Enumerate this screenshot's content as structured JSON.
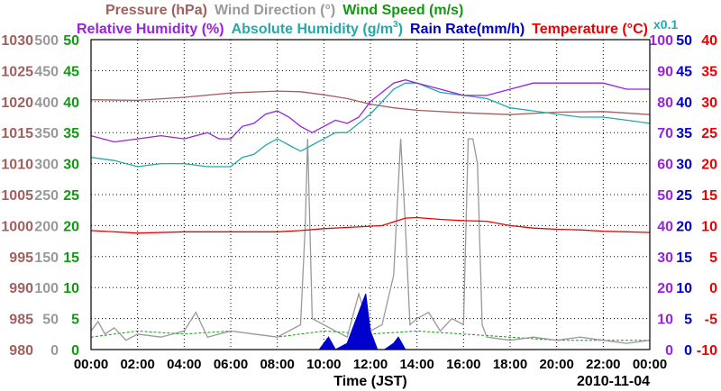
{
  "chart_data": {
    "type": "line",
    "date": "2010-11-04",
    "xlabel": "Time (JST)",
    "x_ticks": [
      "00:00",
      "02:00",
      "04:00",
      "06:00",
      "08:00",
      "10:00",
      "12:00",
      "14:00",
      "16:00",
      "18:00",
      "20:00",
      "22:00",
      "00:00"
    ],
    "x_range_hours": [
      0,
      24
    ],
    "header_row1": [
      {
        "text": "Pressure (hPa)",
        "color": "#a0605e"
      },
      {
        "text": "Wind Direction (°)",
        "color": "#999999"
      },
      {
        "text": "Wind Speed (m/s)",
        "color": "#119911"
      }
    ],
    "header_row2": [
      {
        "text": "Relative Humidity (%)",
        "color": "#9922dd"
      },
      {
        "text": "Absolute Humidity (g/m",
        "sup": "3",
        "tail": ")",
        "color": "#22aaaa"
      },
      {
        "text": "Rain Rate(mm/h)",
        "color": "#0000cc"
      },
      {
        "text": "Temperature (°C)",
        "color": "#ee0000"
      },
      {
        "text": "x0.1",
        "color": "#22aaaa"
      }
    ],
    "axes": {
      "pressure": {
        "color": "#a0605e",
        "ylim": [
          980,
          1030
        ],
        "ticks": [
          "1030",
          "1025",
          "1020",
          "1015",
          "1010",
          "1005",
          "1000",
          "995",
          "990",
          "985",
          "980"
        ]
      },
      "wind_direction": {
        "color": "#999999",
        "ylim": [
          0,
          500
        ],
        "ticks": [
          "500",
          "450",
          "400",
          "350",
          "300",
          "250",
          "200",
          "150",
          "100",
          "50",
          "0"
        ]
      },
      "wind_speed": {
        "color": "#119911",
        "ylim": [
          0,
          50
        ],
        "ticks": [
          "50",
          "45",
          "40",
          "35",
          "30",
          "25",
          "20",
          "15",
          "10",
          "5",
          "0"
        ]
      },
      "humidity": {
        "color": "#9922dd",
        "ylim": [
          0,
          100
        ],
        "ticks": [
          "100",
          "90",
          "80",
          "70",
          "60",
          "50",
          "40",
          "30",
          "20",
          "10",
          "0"
        ]
      },
      "rain_rate": {
        "color": "#0000cc",
        "ylim": [
          0,
          50
        ],
        "ticks": [
          "50",
          "45",
          "40",
          "35",
          "30",
          "25",
          "20",
          "15",
          "10",
          "5",
          "0"
        ]
      },
      "temperature": {
        "color": "#ee0000",
        "ylim": [
          -10,
          40
        ],
        "ticks": [
          "40",
          "35",
          "30",
          "25",
          "20",
          "15",
          "10",
          "5",
          "0",
          "-5",
          "-10"
        ]
      }
    },
    "series": [
      {
        "name": "Pressure",
        "axis": "pressure",
        "color": "#a0605e",
        "x": [
          0,
          2,
          4,
          6,
          8,
          9,
          10,
          11,
          12,
          13,
          14,
          16,
          18,
          20,
          22,
          24
        ],
        "y": [
          1020.3,
          1020.2,
          1020.7,
          1021.4,
          1021.7,
          1021.6,
          1021.1,
          1020.5,
          1019.6,
          1019.0,
          1018.6,
          1018.2,
          1017.9,
          1018.3,
          1018.4,
          1017.9
        ]
      },
      {
        "name": "Relative Humidity",
        "axis": "humidity",
        "color": "#9922dd",
        "x": [
          0,
          1,
          2,
          3,
          4,
          5,
          5.5,
          6,
          6.5,
          7,
          7.5,
          8,
          8.5,
          9,
          9.5,
          10,
          10.5,
          11,
          11.5,
          12,
          12.5,
          13,
          13.5,
          14,
          15,
          16,
          17,
          18,
          19,
          20,
          21,
          22,
          23,
          24
        ],
        "y": [
          69,
          67,
          68,
          69,
          68,
          70,
          68,
          68,
          72,
          73,
          76,
          77,
          75,
          72,
          70,
          72,
          74,
          73,
          75,
          80,
          83,
          86,
          87,
          86,
          84,
          82,
          82,
          84,
          86,
          86,
          86,
          86,
          84,
          84
        ]
      },
      {
        "name": "Absolute Humidity x0.1",
        "axis": "humidity",
        "color": "#22aaaa",
        "x": [
          0,
          1,
          2,
          3,
          4,
          5,
          6,
          6.5,
          7,
          7.5,
          8,
          8.5,
          9,
          9.5,
          10,
          10.5,
          11,
          11.5,
          12,
          12.5,
          13,
          13.5,
          14,
          15,
          16,
          17,
          18,
          19,
          20,
          21,
          22,
          23,
          24
        ],
        "y": [
          62,
          61,
          59,
          60,
          60,
          59,
          59,
          62,
          63,
          66,
          68,
          66,
          64,
          66,
          68,
          70,
          70,
          73,
          76,
          80,
          84,
          86,
          86,
          83,
          82,
          81,
          78,
          77,
          76,
          75,
          75,
          74,
          73
        ]
      },
      {
        "name": "Rain Rate",
        "axis": "rain_rate",
        "color": "#0000cc",
        "x": [
          9.8,
          10.2,
          10.5,
          11,
          11.2,
          11.5,
          11.8,
          12,
          12.3,
          12.6,
          13,
          13.2,
          13.5,
          14
        ],
        "y": [
          0,
          2,
          0,
          1,
          3,
          6,
          9,
          3,
          0,
          0,
          1,
          2,
          0,
          0
        ]
      },
      {
        "name": "Temperature",
        "axis": "temperature",
        "color": "#ee0000",
        "x": [
          0,
          2,
          4,
          6,
          8,
          9,
          10,
          11,
          12,
          12.5,
          13,
          13.5,
          14,
          15,
          16,
          17,
          18,
          19,
          20,
          21,
          22,
          23,
          24
        ],
        "y": [
          9.2,
          8.8,
          9.0,
          9.0,
          9.0,
          9.2,
          9.5,
          9.7,
          9.9,
          10.0,
          10.6,
          11.2,
          11.3,
          11.0,
          10.8,
          10.7,
          10.0,
          9.6,
          9.4,
          9.3,
          9.1,
          9.0,
          8.9
        ]
      },
      {
        "name": "Wind Direction",
        "axis": "wind_direction",
        "color": "#999999",
        "x": [
          0,
          0.3,
          0.6,
          1,
          1.5,
          2,
          3,
          4,
          4.5,
          5,
          6,
          7,
          8,
          9,
          9.2,
          9.3,
          9.4,
          9.5,
          10,
          10.5,
          11,
          11.5,
          12,
          12.5,
          13,
          13.3,
          13.5,
          13.7,
          14,
          14.5,
          15,
          15.5,
          16,
          16.2,
          16.4,
          16.6,
          16.8,
          17,
          18,
          19,
          20,
          21,
          22,
          23,
          24
        ],
        "y": [
          30,
          45,
          25,
          35,
          15,
          25,
          20,
          30,
          60,
          20,
          30,
          25,
          20,
          40,
          200,
          340,
          200,
          50,
          40,
          30,
          20,
          90,
          30,
          40,
          120,
          340,
          200,
          40,
          50,
          60,
          30,
          50,
          40,
          340,
          340,
          300,
          40,
          20,
          15,
          20,
          15,
          20,
          15,
          10,
          15
        ]
      },
      {
        "name": "Wind Speed",
        "axis": "wind_speed",
        "color": "#119911",
        "x": [
          0,
          2,
          4,
          6,
          8,
          10,
          12,
          14,
          16,
          18,
          20,
          22,
          24
        ],
        "y": [
          2,
          3,
          2.5,
          3,
          2,
          3,
          2.5,
          3,
          2.5,
          2,
          1.5,
          1.5,
          1.5
        ]
      }
    ]
  }
}
